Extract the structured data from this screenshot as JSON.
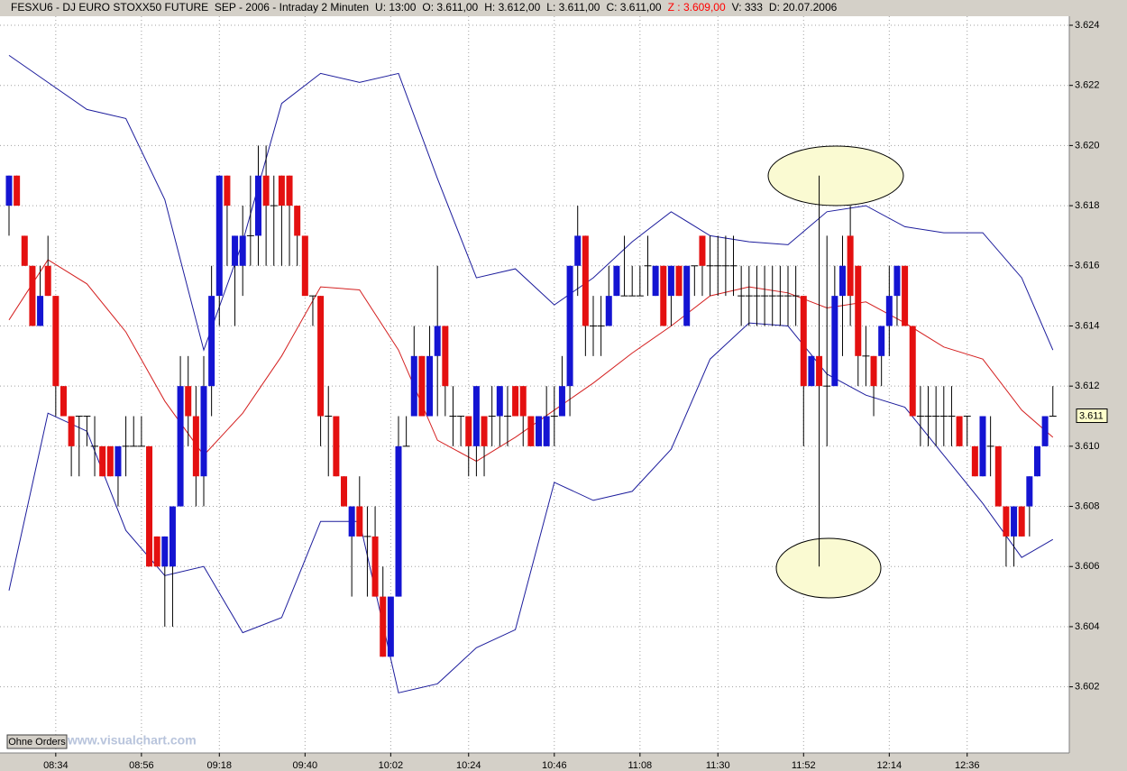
{
  "chart_data": {
    "type": "candlestick",
    "title_parts": [
      "FESXU6 - DJ EURO STOXX50 FUTURE  SEP - 2006 - Intraday 2 Minuten",
      "U: 13:00",
      "O: 3.611,00",
      "H: 3.612,00",
      "L: 3.611,00",
      "C: 3.611,00",
      "Z : 3.609,00",
      "V: 333",
      "D: 20.07.2006"
    ],
    "title_highlight": 6,
    "title_highlight_color": "#ff0000",
    "watermark": "www.visualchart.com",
    "button": "Ohne Orders",
    "up_color": "#1414d2",
    "down_color": "#e41010",
    "grid": true,
    "ylim": [
      3.5998,
      3.6243
    ],
    "yticks": [
      3.602,
      3.604,
      3.606,
      3.608,
      {
        "value": 3.61,
        "label": "3.610"
      },
      3.612,
      3.614,
      3.616,
      3.618,
      {
        "value": 3.62,
        "label": "3.620"
      },
      3.622,
      3.624
    ],
    "last_price": {
      "value": 3.611,
      "label": "3.611"
    },
    "categories": [
      null,
      null,
      null,
      null,
      null,
      null,
      "08:34",
      null,
      null,
      null,
      null,
      null,
      null,
      null,
      null,
      null,
      null,
      "08:56",
      null,
      null,
      null,
      null,
      null,
      null,
      null,
      null,
      null,
      "09:18",
      null,
      null,
      null,
      null,
      null,
      null,
      null,
      null,
      null,
      null,
      "09:40",
      null,
      null,
      null,
      null,
      null,
      null,
      null,
      null,
      null,
      null,
      "10:02",
      null,
      null,
      null,
      null,
      null,
      null,
      null,
      null,
      null,
      "10:24",
      null,
      null,
      null,
      null,
      null,
      null,
      null,
      null,
      null,
      null,
      "10:46",
      null,
      null,
      null,
      null,
      null,
      null,
      null,
      null,
      null,
      null,
      "11:08",
      null,
      null,
      null,
      null,
      null,
      null,
      null,
      null,
      null,
      "11:30",
      null,
      null,
      null,
      null,
      null,
      null,
      null,
      null,
      null,
      null,
      "11:52",
      null,
      null,
      null,
      null,
      null,
      null,
      null,
      null,
      null,
      null,
      "12:14",
      null,
      null,
      null,
      null,
      null,
      null,
      null,
      null,
      null,
      "12:36",
      null,
      null,
      null,
      null,
      null,
      null,
      null,
      null,
      null,
      null,
      null
    ],
    "open": [
      3.618,
      3.619,
      3.617,
      3.616,
      3.614,
      3.616,
      3.615,
      3.612,
      3.611,
      3.611,
      3.611,
      3.61,
      3.61,
      3.61,
      3.609,
      3.61,
      3.61,
      3.61,
      3.61,
      3.607,
      3.606,
      3.606,
      3.608,
      3.612,
      3.611,
      3.609,
      3.612,
      3.615,
      3.619,
      3.616,
      3.616,
      3.617,
      3.617,
      3.619,
      3.618,
      3.619,
      3.619,
      3.618,
      3.617,
      3.615,
      3.615,
      3.611,
      3.611,
      3.609,
      3.607,
      3.608,
      3.607,
      3.607,
      3.605,
      3.603,
      3.605,
      3.61,
      3.611,
      3.613,
      3.611,
      3.613,
      3.614,
      3.611,
      3.611,
      3.611,
      3.61,
      3.611,
      3.611,
      3.611,
      3.611,
      3.612,
      3.612,
      3.611,
      3.61,
      3.61,
      3.611,
      3.611,
      3.612,
      3.616,
      3.617,
      3.614,
      3.614,
      3.614,
      3.615,
      3.615,
      3.615,
      3.615,
      3.616,
      3.615,
      3.616,
      3.615,
      3.616,
      3.614,
      3.616,
      3.617,
      3.616,
      3.616,
      3.616,
      3.616,
      3.615,
      3.615,
      3.615,
      3.615,
      3.615,
      3.615,
      3.615,
      3.615,
      3.615,
      3.612,
      3.613,
      3.612,
      3.612,
      3.615,
      3.617,
      3.616,
      3.613,
      3.613,
      3.613,
      3.614,
      3.615,
      3.616,
      3.614,
      3.611,
      3.611,
      3.611,
      3.611,
      3.611,
      3.611,
      3.611,
      3.61,
      3.609,
      3.61,
      3.61,
      3.608,
      3.607,
      3.608,
      3.608,
      3.609,
      3.61,
      3.611
    ],
    "high": [
      3.619,
      3.619,
      3.617,
      3.616,
      3.616,
      3.617,
      3.615,
      3.612,
      3.611,
      3.611,
      3.611,
      3.611,
      3.61,
      3.61,
      3.61,
      3.611,
      3.611,
      3.611,
      3.61,
      3.607,
      3.607,
      3.608,
      3.613,
      3.613,
      3.612,
      3.613,
      3.616,
      3.619,
      3.619,
      3.617,
      3.618,
      3.619,
      3.62,
      3.62,
      3.619,
      3.619,
      3.619,
      3.618,
      3.617,
      3.615,
      3.615,
      3.612,
      3.611,
      3.609,
      3.608,
      3.609,
      3.608,
      3.608,
      3.606,
      3.605,
      3.611,
      3.611,
      3.614,
      3.613,
      3.614,
      3.616,
      3.614,
      3.612,
      3.611,
      3.611,
      3.612,
      3.611,
      3.612,
      3.612,
      3.612,
      3.612,
      3.612,
      3.611,
      3.611,
      3.612,
      3.612,
      3.613,
      3.616,
      3.618,
      3.617,
      3.615,
      3.615,
      3.616,
      3.616,
      3.617,
      3.616,
      3.616,
      3.617,
      3.616,
      3.616,
      3.616,
      3.616,
      3.616,
      3.616,
      3.617,
      3.617,
      3.617,
      3.617,
      3.617,
      3.616,
      3.616,
      3.616,
      3.616,
      3.616,
      3.616,
      3.616,
      3.616,
      3.615,
      3.613,
      3.619,
      3.617,
      3.616,
      3.617,
      3.618,
      3.616,
      3.614,
      3.613,
      3.614,
      3.616,
      3.616,
      3.616,
      3.614,
      3.612,
      3.612,
      3.612,
      3.612,
      3.612,
      3.611,
      3.611,
      3.61,
      3.611,
      3.611,
      3.61,
      3.608,
      3.608,
      3.608,
      3.609,
      3.61,
      3.611,
      3.612
    ],
    "low": [
      3.617,
      3.618,
      3.616,
      3.614,
      3.614,
      3.615,
      3.611,
      3.611,
      3.609,
      3.609,
      3.61,
      3.609,
      3.609,
      3.609,
      3.608,
      3.609,
      3.61,
      3.61,
      3.606,
      3.606,
      3.604,
      3.604,
      3.608,
      3.61,
      3.608,
      3.608,
      3.611,
      3.614,
      3.616,
      3.614,
      3.615,
      3.616,
      3.616,
      3.616,
      3.616,
      3.616,
      3.616,
      3.616,
      3.615,
      3.614,
      3.61,
      3.609,
      3.609,
      3.608,
      3.605,
      3.607,
      3.605,
      3.605,
      3.603,
      3.603,
      3.605,
      3.61,
      3.611,
      3.611,
      3.611,
      3.611,
      3.611,
      3.61,
      3.61,
      3.609,
      3.609,
      3.609,
      3.61,
      3.61,
      3.61,
      3.611,
      3.61,
      3.61,
      3.61,
      3.61,
      3.61,
      3.611,
      3.611,
      3.615,
      3.613,
      3.613,
      3.613,
      3.614,
      3.615,
      3.615,
      3.615,
      3.615,
      3.615,
      3.615,
      3.614,
      3.614,
      3.615,
      3.614,
      3.615,
      3.615,
      3.615,
      3.615,
      3.615,
      3.615,
      3.614,
      3.614,
      3.614,
      3.614,
      3.614,
      3.614,
      3.614,
      3.614,
      3.61,
      3.612,
      3.606,
      3.61,
      3.612,
      3.613,
      3.614,
      3.612,
      3.612,
      3.611,
      3.612,
      3.613,
      3.614,
      3.614,
      3.611,
      3.61,
      3.61,
      3.61,
      3.61,
      3.61,
      3.61,
      3.61,
      3.609,
      3.609,
      3.609,
      3.608,
      3.606,
      3.606,
      3.607,
      3.607,
      3.609,
      3.61,
      3.611
    ],
    "close": [
      3.619,
      3.618,
      3.616,
      3.614,
      3.615,
      3.615,
      3.612,
      3.611,
      3.61,
      3.611,
      3.611,
      3.61,
      3.609,
      3.609,
      3.61,
      3.61,
      3.61,
      3.61,
      3.606,
      3.606,
      3.607,
      3.608,
      3.612,
      3.611,
      3.609,
      3.612,
      3.615,
      3.619,
      3.618,
      3.617,
      3.617,
      3.617,
      3.619,
      3.618,
      3.618,
      3.618,
      3.618,
      3.617,
      3.615,
      3.615,
      3.611,
      3.611,
      3.609,
      3.608,
      3.608,
      3.607,
      3.607,
      3.605,
      3.603,
      3.605,
      3.61,
      3.61,
      3.613,
      3.611,
      3.613,
      3.614,
      3.612,
      3.611,
      3.611,
      3.61,
      3.612,
      3.61,
      3.611,
      3.612,
      3.611,
      3.611,
      3.611,
      3.61,
      3.611,
      3.611,
      3.611,
      3.612,
      3.616,
      3.617,
      3.614,
      3.614,
      3.614,
      3.615,
      3.616,
      3.615,
      3.615,
      3.615,
      3.616,
      3.616,
      3.614,
      3.616,
      3.615,
      3.616,
      3.616,
      3.616,
      3.616,
      3.616,
      3.616,
      3.616,
      3.615,
      3.615,
      3.615,
      3.615,
      3.615,
      3.615,
      3.615,
      3.615,
      3.612,
      3.613,
      3.612,
      3.612,
      3.615,
      3.616,
      3.615,
      3.613,
      3.613,
      3.612,
      3.614,
      3.615,
      3.616,
      3.614,
      3.611,
      3.611,
      3.611,
      3.611,
      3.611,
      3.611,
      3.61,
      3.611,
      3.609,
      3.611,
      3.61,
      3.608,
      3.607,
      3.608,
      3.607,
      3.609,
      3.61,
      3.611,
      3.611
    ],
    "bands": [
      {
        "color": "#1c1c9c",
        "x": [
          0,
          5,
          10,
          15,
          20,
          25,
          30,
          35,
          40,
          45,
          50,
          55,
          60,
          65,
          70,
          75,
          80,
          85,
          90,
          95,
          100,
          105,
          110,
          115,
          120,
          125,
          130,
          134
        ],
        "values": [
          3.623,
          3.6221,
          3.6212,
          3.6209,
          3.6182,
          3.6132,
          3.6168,
          3.6214,
          3.6224,
          3.6221,
          3.6224,
          3.6189,
          3.6156,
          3.6159,
          3.6147,
          3.6156,
          3.6168,
          3.6178,
          3.617,
          3.6168,
          3.6167,
          3.6178,
          3.618,
          3.6173,
          3.6171,
          3.6171,
          3.6156,
          3.6132
        ]
      },
      {
        "color": "#d42020",
        "x": [
          0,
          5,
          10,
          15,
          20,
          25,
          30,
          35,
          40,
          45,
          50,
          55,
          60,
          65,
          70,
          75,
          80,
          85,
          90,
          95,
          100,
          105,
          110,
          115,
          120,
          125,
          130,
          134
        ],
        "values": [
          3.6142,
          3.6162,
          3.6154,
          3.6138,
          3.6115,
          3.6097,
          3.6111,
          3.613,
          3.6153,
          3.6152,
          3.6132,
          3.6102,
          3.6095,
          3.6103,
          3.6112,
          3.6121,
          3.6131,
          3.614,
          3.615,
          3.6153,
          3.6151,
          3.6146,
          3.6148,
          3.6141,
          3.6133,
          3.6129,
          3.6112,
          3.6103
        ]
      },
      {
        "color": "#1c1c9c",
        "x": [
          0,
          5,
          10,
          15,
          20,
          25,
          30,
          35,
          40,
          45,
          50,
          55,
          60,
          65,
          70,
          75,
          80,
          85,
          90,
          95,
          100,
          105,
          110,
          115,
          120,
          125,
          130,
          134
        ],
        "values": [
          3.6052,
          3.6111,
          3.6105,
          3.6072,
          3.6057,
          3.606,
          3.6038,
          3.6043,
          3.6075,
          3.6075,
          3.6018,
          3.6021,
          3.6033,
          3.6039,
          3.6088,
          3.6082,
          3.6085,
          3.6099,
          3.6129,
          3.6141,
          3.614,
          3.6124,
          3.6117,
          3.6113,
          3.6097,
          3.6081,
          3.6063,
          3.6069
        ]
      }
    ]
  }
}
